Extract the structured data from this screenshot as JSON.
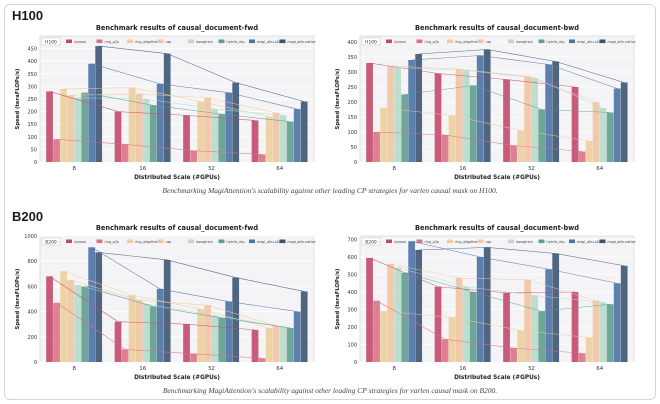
{
  "sections": [
    {
      "heading": "H100",
      "caption": "Benchmarking MagiAttention's scalability against other leading CP strategies for varlen causal mask on H100."
    },
    {
      "heading": "B200",
      "caption": "Benchmarking MagiAttention's scalability against other leading CP strategies for varlen causal mask on B200."
    }
  ],
  "colors": [
    "#c24a6b",
    "#d97387",
    "#eccf9c",
    "#f2c5a3",
    "#b7dccb",
    "#5f9e90",
    "#4c72a6",
    "#3d5573"
  ],
  "chart_data": [
    {
      "type": "bar",
      "tag": "H100",
      "title": "Benchmark results of causal_document-fwd",
      "xlabel": "Distributed Scale (#GPUs)",
      "ylabel": "Speed (teraFLOPs/s)",
      "ylim": [
        0,
        500
      ],
      "yticks": [
        0,
        50,
        100,
        150,
        200,
        250,
        300,
        350,
        400,
        450
      ],
      "categories": [
        "8",
        "16",
        "32",
        "64"
      ],
      "legend_position": "top",
      "series": [
        {
          "name": "ulysses",
          "values": [
            280,
            200,
            185,
            165
          ]
        },
        {
          "name": "ring_p2p",
          "values": [
            90,
            70,
            45,
            30
          ]
        },
        {
          "name": "ring_allgather",
          "values": [
            290,
            295,
            240,
            180
          ]
        },
        {
          "name": "usp",
          "values": [
            265,
            270,
            255,
            195
          ]
        },
        {
          "name": "loongtrain",
          "values": [
            255,
            250,
            210,
            185
          ]
        },
        {
          "name": "hybrid_dcp",
          "values": [
            275,
            225,
            190,
            160
          ]
        },
        {
          "name": "magi_attn-a2av",
          "values": [
            390,
            310,
            275,
            210
          ]
        },
        {
          "name": "magi_attn-native",
          "values": [
            460,
            430,
            315,
            240
          ]
        }
      ]
    },
    {
      "type": "bar",
      "tag": "H100",
      "title": "Benchmark results of causal_document-bwd",
      "xlabel": "Distributed Scale (#GPUs)",
      "ylabel": "Speed (teraFLOPs/s)",
      "ylim": [
        0,
        420
      ],
      "yticks": [
        0,
        50,
        100,
        150,
        200,
        250,
        300,
        350,
        400
      ],
      "categories": [
        "8",
        "16",
        "32",
        "64"
      ],
      "legend_position": "top",
      "series": [
        {
          "name": "ulysses",
          "values": [
            330,
            295,
            275,
            250
          ]
        },
        {
          "name": "ring_p2p",
          "values": [
            100,
            90,
            55,
            35
          ]
        },
        {
          "name": "ring_allgather",
          "values": [
            180,
            155,
            105,
            70
          ]
        },
        {
          "name": "usp",
          "values": [
            320,
            310,
            285,
            200
          ]
        },
        {
          "name": "loongtrain",
          "values": [
            315,
            305,
            280,
            180
          ]
        },
        {
          "name": "hybrid_dcp",
          "values": [
            225,
            255,
            175,
            165
          ]
        },
        {
          "name": "magi_attn-a2av",
          "values": [
            340,
            355,
            325,
            245
          ]
        },
        {
          "name": "magi_attn-native",
          "values": [
            360,
            375,
            335,
            265
          ]
        }
      ]
    },
    {
      "type": "bar",
      "tag": "B200",
      "title": "Benchmark results of causal_document-fwd",
      "xlabel": "Distributed Scale (#GPUs)",
      "ylabel": "Speed (teraFLOPs/s)",
      "ylim": [
        0,
        1000
      ],
      "yticks": [
        0,
        200,
        400,
        600,
        800,
        1000
      ],
      "categories": [
        "8",
        "16",
        "32",
        "64"
      ],
      "legend_position": "top",
      "series": [
        {
          "name": "ulysses",
          "values": [
            680,
            320,
            300,
            255
          ]
        },
        {
          "name": "ring_p2p",
          "values": [
            470,
            100,
            65,
            30
          ]
        },
        {
          "name": "ring_allgather",
          "values": [
            720,
            530,
            420,
            270
          ]
        },
        {
          "name": "usp",
          "values": [
            650,
            490,
            450,
            290
          ]
        },
        {
          "name": "loongtrain",
          "values": [
            610,
            460,
            370,
            280
          ]
        },
        {
          "name": "hybrid_dcp",
          "values": [
            600,
            440,
            350,
            270
          ]
        },
        {
          "name": "magi_attn-a2av",
          "values": [
            910,
            580,
            480,
            400
          ]
        },
        {
          "name": "magi_attn-native",
          "values": [
            870,
            810,
            670,
            560
          ]
        }
      ]
    },
    {
      "type": "bar",
      "tag": "B200",
      "title": "Benchmark results of causal_document-bwd",
      "xlabel": "Distributed Scale (#GPUs)",
      "ylabel": "Speed (teraFLOPs/s)",
      "ylim": [
        0,
        720
      ],
      "yticks": [
        0,
        100,
        200,
        300,
        400,
        500,
        600,
        700
      ],
      "categories": [
        "8",
        "16",
        "32",
        "64"
      ],
      "legend_position": "top",
      "series": [
        {
          "name": "ulysses",
          "values": [
            595,
            430,
            395,
            400
          ]
        },
        {
          "name": "ring_p2p",
          "values": [
            350,
            130,
            80,
            50
          ]
        },
        {
          "name": "ring_allgather",
          "values": [
            290,
            255,
            180,
            140
          ]
        },
        {
          "name": "usp",
          "values": [
            560,
            480,
            470,
            350
          ]
        },
        {
          "name": "loongtrain",
          "values": [
            540,
            430,
            380,
            340
          ]
        },
        {
          "name": "hybrid_dcp",
          "values": [
            510,
            400,
            290,
            330
          ]
        },
        {
          "name": "magi_attn-a2av",
          "values": [
            690,
            600,
            530,
            450
          ]
        },
        {
          "name": "magi_attn-native",
          "values": [
            640,
            655,
            620,
            550
          ]
        }
      ]
    }
  ]
}
